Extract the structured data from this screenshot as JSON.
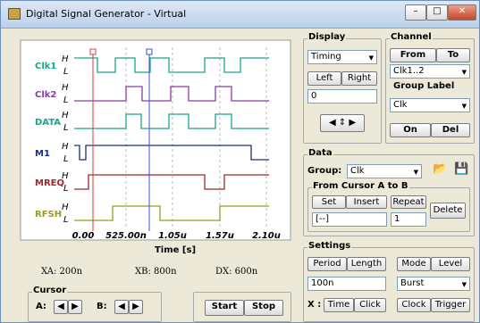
{
  "window": {
    "title": "Digital Signal Generator - Virtual"
  },
  "plot": {
    "signals": [
      "Clk1",
      "Clk2",
      "DATA",
      "M1",
      "MREQ",
      "RFSH"
    ],
    "level_high": "H",
    "level_low": "L",
    "xticks": [
      "0.00",
      "525.00n",
      "1.05u",
      "1.57u",
      "2.10u"
    ],
    "xlabel": "Time [s]"
  },
  "readouts": {
    "xa": "XA: 200n",
    "xb": "XB: 800n",
    "dx": "DX: 600n"
  },
  "cursor": {
    "label": "Cursor",
    "a": "A:",
    "b": "B:"
  },
  "run": {
    "start": "Start",
    "stop": "Stop"
  },
  "display": {
    "label": "Display",
    "mode": "Timing",
    "left": "Left",
    "right": "Right",
    "offset": "0"
  },
  "channel": {
    "label": "Channel",
    "from": "From",
    "to": "To",
    "range": "Clk1..2",
    "group_label": "Group Label",
    "group": "Clk",
    "on": "On",
    "del": "Del"
  },
  "data": {
    "label": "Data",
    "group_label": "Group:",
    "group": "Clk",
    "from_cursor": "From Cursor A to B",
    "set": "Set",
    "insert": "Insert",
    "repeat": "Repeat",
    "delete": "Delete",
    "field": "[--]",
    "count": "1"
  },
  "settings": {
    "label": "Settings",
    "period": "Period",
    "length": "Length",
    "mode": "Mode",
    "level": "Level",
    "value": "100n",
    "mode_value": "Burst",
    "x_label": "X :",
    "time": "Time",
    "click": "Click",
    "clock": "Clock",
    "trigger": "Trigger"
  }
}
